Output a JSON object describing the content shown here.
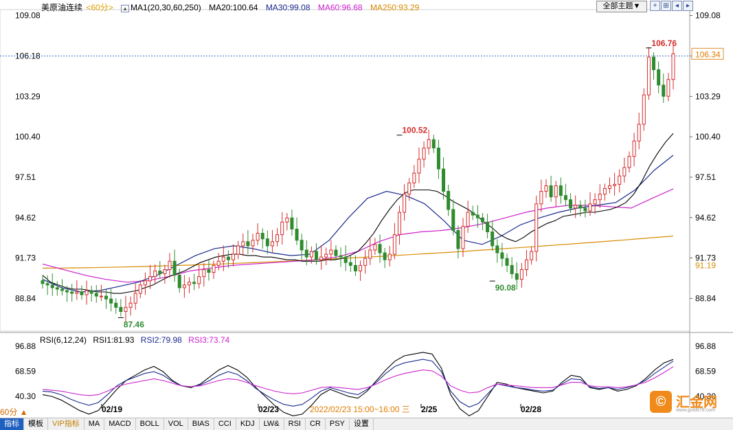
{
  "header": {
    "symbol": "美原油连续",
    "period": "<60分>",
    "ma1": "MA1(20,30,60,250)",
    "ma20": "MA20:100.64",
    "ma30": "MA30:99.08",
    "ma60": "MA60:96.68",
    "ma250": "MA250:93.29"
  },
  "toolbar": {
    "theme_label": "全部主题▼",
    "icons": [
      "grid-icon",
      "zoom-in-icon",
      "prev-icon",
      "next-icon"
    ]
  },
  "rsi_header": {
    "rsi": "RSI(6,12,24)",
    "rsi1": "RSI1:81.93",
    "rsi2": "RSI2:79.98",
    "rsi3": "RSI3:73.74"
  },
  "crosshair_tip": "2022/02/23 15:00~16:00 三",
  "period_selector": "60分 ▲",
  "tabs": [
    "指标",
    "模板",
    "VIP指标",
    "MA",
    "MACD",
    "BOLL",
    "VOL",
    "BIAS",
    "CCI",
    "KDJ",
    "LW&",
    "RSI",
    "CR",
    "PSY",
    "设置"
  ],
  "logo": {
    "name": "汇金网",
    "url": "www.gold678.com"
  },
  "colors": {
    "up": "#d42b2b",
    "down": "#2e8b2e",
    "ma20": "#000000",
    "ma30": "#1a2a8c",
    "ma60": "#cc22cc",
    "ma250": "#d88a00"
  },
  "chart_data": [
    {
      "type": "candlestick",
      "title": "美原油连续",
      "ylim": [
        86.5,
        109.5
      ],
      "yticks": [
        "109.08",
        "106.18",
        "103.29",
        "100.40",
        "97.51",
        "94.62",
        "91.73",
        "88.84"
      ],
      "xticks": [
        "02/19",
        "02/23",
        "2/25",
        "02/28"
      ],
      "last_price": "106.34",
      "ref_price": "106.18",
      "ma250_label": "91.19",
      "annotations": [
        {
          "text": "106.76",
          "candle": 124,
          "value": 106.76,
          "color": "#d42b2b"
        },
        {
          "text": "100.52",
          "candle": 73,
          "value": 100.52,
          "color": "#d42b2b"
        },
        {
          "text": "90.08",
          "candle": 92,
          "value": 90.08,
          "color": "#2e8b2e"
        },
        {
          "text": "87.46",
          "candle": 16,
          "value": 87.46,
          "color": "#2e8b2e"
        }
      ],
      "close": [
        89.9,
        89.8,
        89.6,
        89.5,
        89.4,
        89.3,
        89.2,
        89.3,
        89.1,
        89.4,
        89.2,
        89.0,
        89.0,
        88.8,
        88.5,
        88.2,
        87.9,
        88.2,
        88.5,
        89.2,
        89.8,
        90.1,
        90.4,
        90.8,
        90.6,
        90.9,
        91.5,
        90.5,
        89.6,
        89.8,
        90.0,
        89.9,
        90.4,
        90.9,
        90.7,
        91.2,
        91.5,
        91.8,
        91.6,
        92.0,
        92.6,
        92.9,
        92.6,
        93.0,
        93.5,
        93.1,
        92.6,
        92.9,
        93.4,
        94.3,
        94.6,
        93.8,
        93.0,
        92.3,
        91.8,
        92.2,
        91.6,
        91.8,
        92.0,
        92.3,
        91.9,
        91.8,
        91.4,
        91.2,
        90.8,
        91.2,
        91.7,
        92.3,
        92.7,
        92.1,
        91.6,
        92.0,
        93.4,
        95.0,
        96.3,
        97.1,
        97.8,
        98.8,
        99.6,
        100.2,
        99.6,
        98.1,
        96.5,
        95.2,
        93.7,
        92.4,
        94.0,
        95.0,
        94.8,
        94.6,
        94.3,
        93.6,
        92.6,
        92.1,
        91.7,
        91.2,
        90.6,
        90.2,
        90.9,
        91.6,
        92.2,
        95.6,
        96.5,
        96.9,
        96.1,
        96.9,
        96.2,
        95.9,
        95.3,
        95.5,
        95.3,
        95.1,
        95.6,
        95.9,
        96.3,
        96.7,
        96.9,
        97.0,
        97.6,
        98.2,
        99.0,
        100.1,
        101.3,
        103.4,
        106.1,
        105.2,
        104.1,
        103.3,
        104.5,
        106.34
      ],
      "ma20": [
        90.5,
        90.0,
        89.8,
        89.6,
        89.5,
        89.5,
        89.4,
        89.3,
        89.3,
        89.2,
        89.2,
        89.3,
        89.4,
        89.6,
        89.8,
        90.1,
        90.4,
        90.6,
        90.8,
        91.1,
        91.4,
        91.6,
        91.8,
        91.9,
        92.0,
        92.0,
        91.9,
        91.9,
        91.8,
        91.8,
        91.7,
        91.6,
        91.6,
        91.5,
        91.5,
        91.5,
        91.6,
        91.6,
        91.7,
        91.9,
        92.2,
        92.8,
        93.5,
        94.4,
        95.2,
        95.9,
        96.4,
        96.6,
        96.6,
        96.6,
        96.5,
        96.2,
        95.8,
        95.5,
        95.2,
        94.8,
        94.3,
        93.9,
        93.4,
        93.1,
        92.9,
        93.2,
        93.6,
        93.9,
        94.2,
        94.4,
        94.7,
        94.8,
        94.9,
        95.0,
        95.0,
        95.1,
        95.2,
        95.4,
        95.7,
        96.3,
        97.2,
        98.3,
        99.2,
        100.0,
        100.64
      ]
    },
    {
      "type": "line",
      "title": "RSI(6,12,24)",
      "ylim": [
        30,
        100
      ],
      "yticks": [
        "96.88",
        "68.59",
        "40.30"
      ],
      "series": [
        {
          "name": "RSI1",
          "values": [
            42,
            40,
            36,
            30,
            24,
            20,
            24,
            36,
            48,
            58,
            64,
            70,
            74,
            68,
            58,
            52,
            50,
            54,
            62,
            70,
            75,
            70,
            62,
            50,
            40,
            30,
            22,
            18,
            20,
            30,
            42,
            48,
            44,
            40,
            38,
            46,
            58,
            70,
            80,
            86,
            88,
            90,
            88,
            72,
            42,
            26,
            18,
            24,
            40,
            56,
            54,
            50,
            48,
            46,
            44,
            46,
            56,
            64,
            62,
            50,
            48,
            50,
            46,
            48,
            52,
            60,
            70,
            78,
            81.93
          ]
        },
        {
          "name": "RSI2",
          "values": [
            46,
            45,
            42,
            37,
            33,
            30,
            33,
            42,
            52,
            58,
            62,
            66,
            68,
            64,
            57,
            52,
            51,
            53,
            58,
            64,
            68,
            65,
            58,
            49,
            42,
            36,
            31,
            29,
            31,
            38,
            46,
            50,
            47,
            44,
            42,
            48,
            56,
            66,
            74,
            78,
            80,
            82,
            80,
            68,
            46,
            34,
            28,
            32,
            43,
            54,
            52,
            50,
            49,
            47,
            46,
            47,
            54,
            60,
            59,
            51,
            49,
            50,
            48,
            50,
            53,
            58,
            66,
            73,
            79.98
          ]
        },
        {
          "name": "RSI3",
          "values": [
            48,
            47,
            46,
            44,
            42,
            41,
            42,
            46,
            51,
            54,
            56,
            58,
            60,
            58,
            55,
            52,
            51,
            52,
            55,
            58,
            60,
            59,
            56,
            52,
            49,
            46,
            44,
            43,
            44,
            47,
            50,
            51,
            50,
            49,
            48,
            50,
            54,
            59,
            63,
            66,
            68,
            70,
            69,
            63,
            52,
            47,
            44,
            45,
            50,
            54,
            53,
            52,
            51,
            50,
            50,
            50,
            53,
            56,
            56,
            52,
            51,
            51,
            50,
            51,
            53,
            56,
            61,
            67,
            73.74
          ]
        }
      ]
    }
  ]
}
